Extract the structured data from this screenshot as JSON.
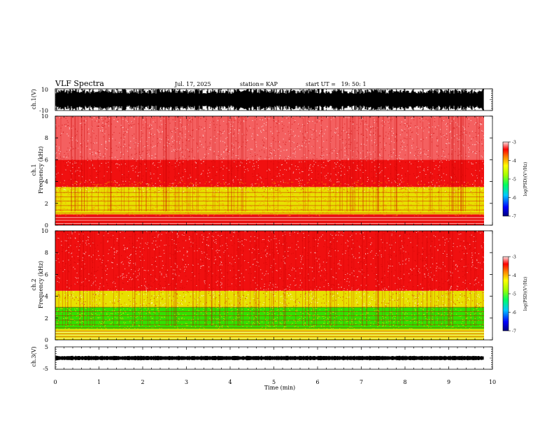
{
  "chart_data": {
    "type": "heatmap",
    "title": "VLF Spectra",
    "header": {
      "date": "Jul. 17, 2025",
      "station": "station= KAP",
      "start": "start UT =   19: 50: 1"
    },
    "xlabel": "Time (min)",
    "xlim": [
      0,
      10
    ],
    "x_ticks": [
      "0",
      "1",
      "2",
      "3",
      "4",
      "5",
      "6",
      "7",
      "8",
      "9",
      "10"
    ],
    "panels": [
      {
        "id": "ch1-waveform",
        "ylabel": "ch.1(V)",
        "ylim": [
          -10,
          10
        ],
        "y_ticks": [
          "10",
          "-10"
        ],
        "amplitude": 10
      },
      {
        "id": "ch1-spectrogram",
        "ylabel": "ch.1 Frequency (kHz)",
        "ylabel_top": "ch.1",
        "ylabel_bottom": "Frequency (kHz)",
        "ylim": [
          0,
          10
        ],
        "y_ticks": [
          "0",
          "2",
          "4",
          "6",
          "8",
          "10"
        ],
        "bands": [
          {
            "from": 0,
            "to": 1,
            "level": "red"
          },
          {
            "from": 1,
            "to": 3.5,
            "level": "yellow"
          },
          {
            "from": 3.5,
            "to": 6,
            "level": "red"
          },
          {
            "from": 6,
            "to": 10,
            "level": "light-red"
          }
        ],
        "colorbar": {
          "label": "log(PSD)(V²/Hz)",
          "range": [
            -7,
            -3
          ],
          "ticks": [
            "-3",
            "-4",
            "-5",
            "-6",
            "-7"
          ]
        }
      },
      {
        "id": "ch2-spectrogram",
        "ylabel": "ch.2 Frequency (kHz)",
        "ylabel_top": "ch.2",
        "ylabel_bottom": "Frequency (kHz)",
        "ylim": [
          0,
          10
        ],
        "y_ticks": [
          "0",
          "2",
          "4",
          "6",
          "8",
          "10"
        ],
        "bands": [
          {
            "from": 0,
            "to": 1,
            "level": "yellow"
          },
          {
            "from": 1,
            "to": 3,
            "level": "green"
          },
          {
            "from": 3,
            "to": 4.5,
            "level": "yellow"
          },
          {
            "from": 4.5,
            "to": 10,
            "level": "red"
          }
        ],
        "colorbar": {
          "label": "log(PSD)(V²/Hz)",
          "range": [
            -7,
            -3
          ],
          "ticks": [
            "-3",
            "-4",
            "-5",
            "-6",
            "-7"
          ]
        }
      },
      {
        "id": "ch3-waveform",
        "ylabel": "ch.3(V)",
        "ylim": [
          -5,
          5
        ],
        "y_ticks": [
          "5",
          "-5"
        ],
        "amplitude": 1
      }
    ],
    "colors": {
      "dark-red": "#c80000",
      "red": "#f01010",
      "light-red": "#f46060",
      "yellow": "#e8e000",
      "green": "#33e000",
      "orange": "#f89000"
    }
  }
}
